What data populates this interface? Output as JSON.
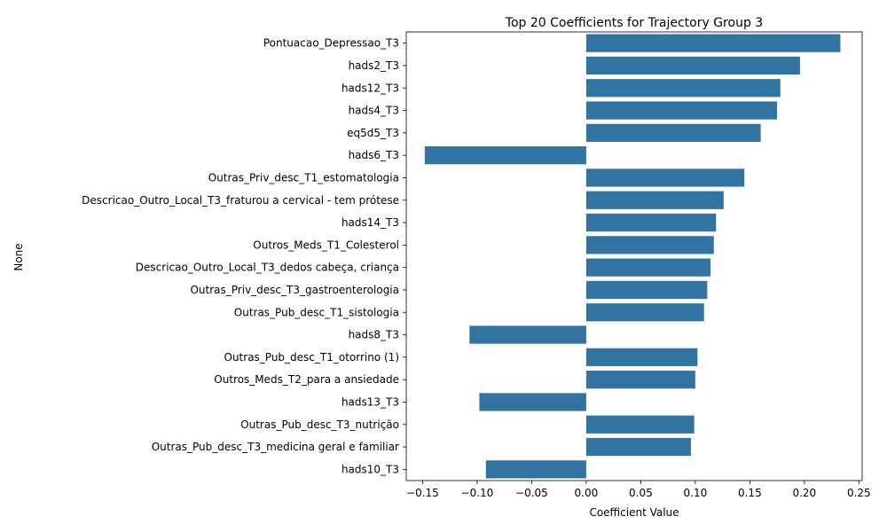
{
  "chart_data": {
    "type": "bar",
    "orientation": "horizontal",
    "title": "Top 20 Coefficients for Trajectory Group 3",
    "xlabel": "Coefficient Value",
    "ylabel": "None",
    "xlim": [
      -0.165,
      0.253
    ],
    "xticks": [
      -0.15,
      -0.1,
      -0.05,
      0.0,
      0.05,
      0.1,
      0.15,
      0.2,
      0.25
    ],
    "xtick_labels": [
      "−0.15",
      "−0.10",
      "−0.05",
      "0.00",
      "0.05",
      "0.10",
      "0.15",
      "0.20",
      "0.25"
    ],
    "grid": false,
    "bar_color": "#3274a1",
    "categories": [
      "Pontuacao_Depressao_T3",
      "hads2_T3",
      "hads12_T3",
      "hads4_T3",
      "eq5d5_T3",
      "hads6_T3",
      "Outras_Priv_desc_T1_estomatologia",
      "Descricao_Outro_Local_T3_fraturou a cervical - tem prótese",
      "hads14_T3",
      "Outros_Meds_T1_Colesterol",
      "Descricao_Outro_Local_T3_dedos cabeça, criança",
      "Outras_Priv_desc_T3_gastroenterologia",
      "Outras_Pub_desc_T1_sistologia",
      "hads8_T3",
      "Outras_Pub_desc_T1_otorrino (1)",
      "Outros_Meds_T2_para a ansiedade",
      "hads13_T3",
      "Outras_Pub_desc_T3_nutrição",
      "Outras_Pub_desc_T3_medicina geral e familiar",
      "hads10_T3"
    ],
    "values": [
      0.233,
      0.196,
      0.178,
      0.175,
      0.16,
      -0.148,
      0.145,
      0.126,
      0.119,
      0.117,
      0.114,
      0.111,
      0.108,
      -0.107,
      0.102,
      0.1,
      -0.098,
      0.099,
      0.096,
      -0.092
    ]
  }
}
